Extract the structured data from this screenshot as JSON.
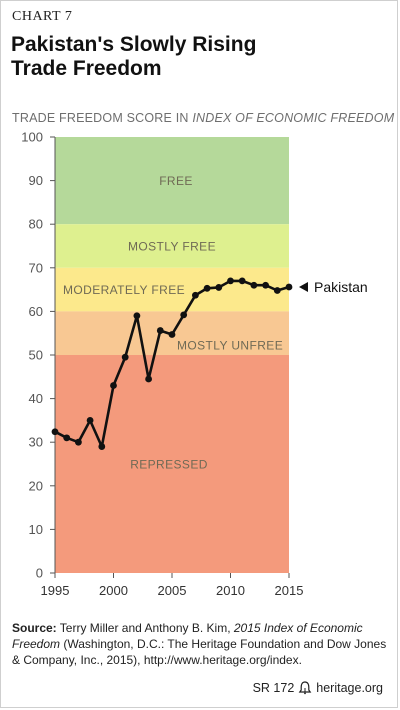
{
  "header": {
    "chart_label": "CHART 7",
    "title_line1": "Pakistan's Slowly Rising",
    "title_line2": "Trade Freedom",
    "subtitle_main": "TRADE FREEDOM SCORE IN ",
    "subtitle_italic": "INDEX OF ECONOMIC FREEDOM"
  },
  "chart_data": {
    "type": "line",
    "title": "Pakistan's Slowly Rising Trade Freedom",
    "ylabel": "TRADE FREEDOM SCORE IN INDEX OF ECONOMIC FREEDOM",
    "xlabel": "",
    "xlim": [
      1995,
      2015
    ],
    "ylim": [
      0,
      100
    ],
    "x_ticks": [
      "1995",
      "2000",
      "2005",
      "2010",
      "2015"
    ],
    "y_ticks": [
      "0",
      "10",
      "20",
      "30",
      "40",
      "50",
      "60",
      "70",
      "80",
      "90",
      "100"
    ],
    "grid": false,
    "bands": [
      {
        "label": "FREE",
        "from": 80,
        "to": 100,
        "color": "#b5d99a"
      },
      {
        "label": "MOSTLY FREE",
        "from": 70,
        "to": 80,
        "color": "#def08f"
      },
      {
        "label": "MODERATELY FREE",
        "from": 60,
        "to": 70,
        "color": "#fce98c"
      },
      {
        "label": "MOSTLY UNFREE",
        "from": 50,
        "to": 60,
        "color": "#f8c893"
      },
      {
        "label": "REPRESSED",
        "from": 0,
        "to": 50,
        "color": "#f49a7c"
      }
    ],
    "series": [
      {
        "name": "Pakistan",
        "color": "#111111",
        "x": [
          1995,
          1996,
          1997,
          1998,
          1999,
          2000,
          2001,
          2002,
          2003,
          2004,
          2005,
          2006,
          2007,
          2008,
          2009,
          2010,
          2011,
          2012,
          2013,
          2014,
          2015
        ],
        "y": [
          32.4,
          31,
          30,
          35,
          29,
          43,
          49.5,
          59,
          44.5,
          55.6,
          54.7,
          59.2,
          63.7,
          65.3,
          65.5,
          67,
          67,
          66,
          66,
          64.8,
          65.6
        ]
      }
    ]
  },
  "source": {
    "label": "Source:",
    "text_before": " Terry Miller and Anthony B. Kim, ",
    "italic": "2015 Index of Economic Freedom",
    "text_after": " (Washington, D.C.: The Heritage Foundation and Dow Jones & Company, Inc., 2015), http://www.heritage.org/index."
  },
  "footer": {
    "report_id": "SR 172",
    "site": "heritage.org",
    "logo_icon": "liberty-bell-icon"
  }
}
